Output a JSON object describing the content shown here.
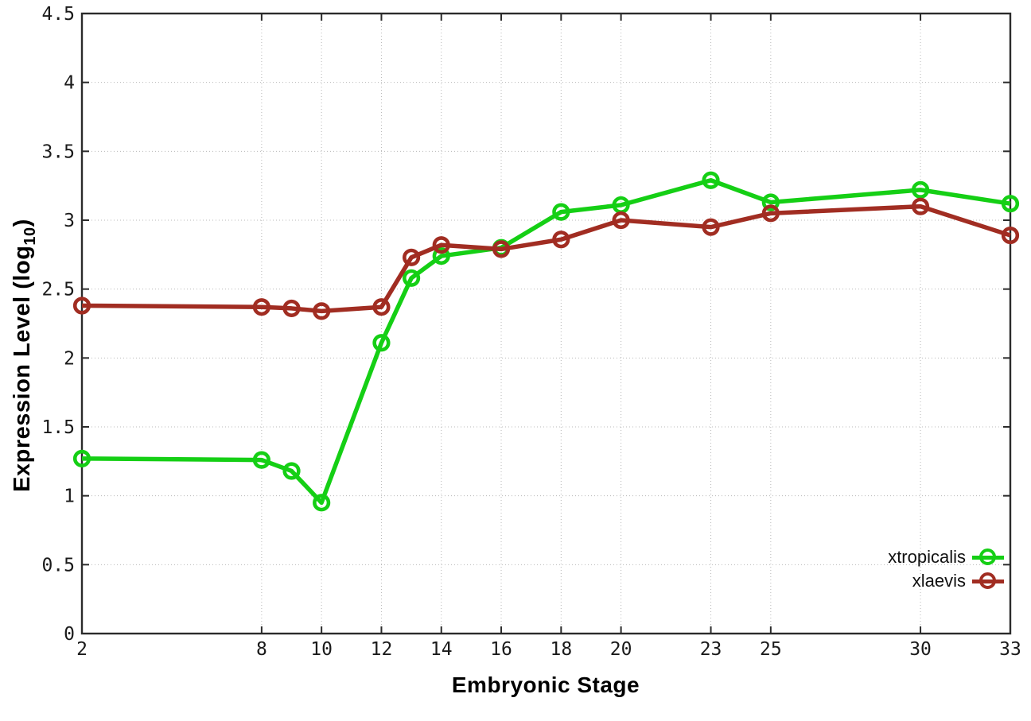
{
  "chart_style": {
    "background": "#ffffff",
    "border_color": "#2b2b2b",
    "grid_color": "#b8b8b8",
    "tick_color": "#2b2b2b",
    "tick_label_color": "#1a1a1a"
  },
  "axes": {
    "ylabel_main": "Expression Level (log",
    "ylabel_sub": "10",
    "ylabel_close": ")"
  },
  "chart_data": {
    "type": "line",
    "title": "",
    "xlabel": "Embryonic Stage",
    "ylabel": "Expression Level (log10)",
    "x": [
      2,
      8,
      9,
      10,
      12,
      13,
      14,
      16,
      18,
      20,
      23,
      25,
      30,
      33
    ],
    "series": [
      {
        "name": "xtropicalis",
        "color": "#15cf15",
        "marker": "open-circle",
        "values": [
          1.27,
          1.26,
          1.18,
          0.95,
          2.11,
          2.58,
          2.74,
          2.8,
          3.06,
          3.11,
          3.29,
          3.13,
          3.22,
          3.12
        ]
      },
      {
        "name": "xlaevis",
        "color": "#a12d22",
        "marker": "open-circle",
        "values": [
          2.38,
          2.37,
          2.36,
          2.34,
          2.37,
          2.73,
          2.82,
          2.79,
          2.86,
          3.0,
          2.95,
          3.05,
          3.1,
          2.89
        ]
      }
    ],
    "xticks": [
      2,
      8,
      10,
      12,
      14,
      16,
      18,
      20,
      23,
      25,
      30,
      33
    ],
    "yticks": [
      0,
      0.5,
      1,
      1.5,
      2,
      2.5,
      3,
      3.5,
      4,
      4.5
    ],
    "xlim": [
      2,
      33
    ],
    "ylim": [
      0,
      4.5
    ],
    "grid": true,
    "legend_position": "bottom-right"
  }
}
